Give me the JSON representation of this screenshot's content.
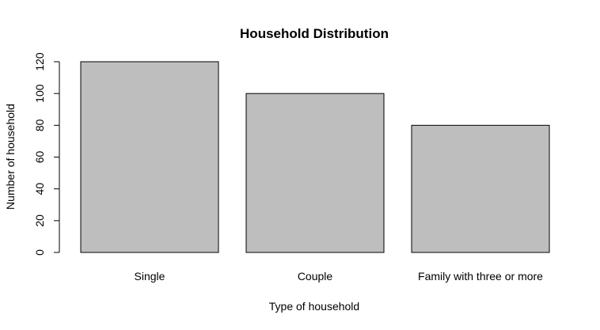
{
  "chart_data": {
    "type": "bar",
    "title": "Household Distribution",
    "xlabel": "Type of household",
    "ylabel": "Number of household",
    "categories": [
      "Single",
      "Couple",
      "Family with three or more"
    ],
    "values": [
      120,
      100,
      80
    ],
    "yticks": [
      0,
      20,
      40,
      60,
      80,
      100,
      120
    ],
    "ylim": [
      0,
      120
    ],
    "bar_color": "#bebebe",
    "grid": false
  }
}
